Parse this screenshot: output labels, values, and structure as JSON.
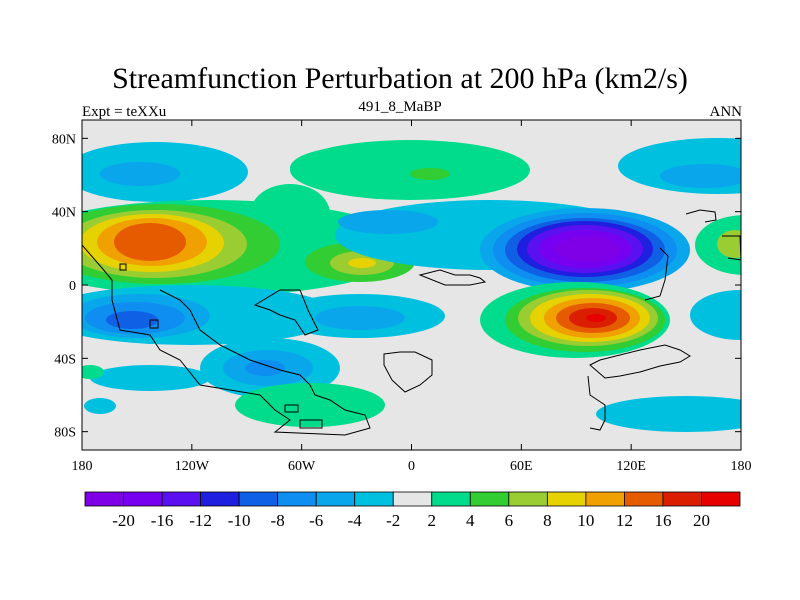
{
  "chart_data": {
    "type": "heatmap",
    "title": "Streamfunction Perturbation at 200 hPa (km2/s)",
    "left_label": "Expt = teXXu",
    "center_label": "491_8_MaBP",
    "right_label": "ANN",
    "x_ticks": [
      {
        "value": -180,
        "label": "180"
      },
      {
        "value": -120,
        "label": "120W"
      },
      {
        "value": -60,
        "label": "60W"
      },
      {
        "value": 0,
        "label": "0"
      },
      {
        "value": 60,
        "label": "60E"
      },
      {
        "value": 120,
        "label": "120E"
      },
      {
        "value": 180,
        "label": "180"
      }
    ],
    "y_ticks": [
      {
        "value": 80,
        "label": "80N"
      },
      {
        "value": 40,
        "label": "40N"
      },
      {
        "value": 0,
        "label": "0"
      },
      {
        "value": -40,
        "label": "40S"
      },
      {
        "value": -80,
        "label": "80S"
      }
    ],
    "xlim": [
      -180,
      180
    ],
    "ylim": [
      -90,
      90
    ],
    "levels": [
      -20,
      -16,
      -12,
      -10,
      -8,
      -6,
      -4,
      -2,
      2,
      4,
      6,
      8,
      10,
      12,
      16,
      20
    ],
    "level_labels": [
      "-20",
      "-16",
      "-12",
      "-10",
      "-8",
      "-6",
      "-4",
      "-2",
      "2",
      "4",
      "6",
      "8",
      "10",
      "12",
      "16",
      "20"
    ],
    "colors": [
      "#7f00e6",
      "#7700f0",
      "#5a10f0",
      "#1f1fe0",
      "#1060e6",
      "#0d8ef0",
      "#0aa6eb",
      "#00c0e0",
      "#e6e6e6",
      "#00dc8c",
      "#32cd32",
      "#9acd32",
      "#e6d200",
      "#f0a000",
      "#e65a00",
      "#dc1e00",
      "#e60000"
    ],
    "features": [
      {
        "lon": -145,
        "lat": 25,
        "value": 16
      },
      {
        "lon": -45,
        "lat": 12,
        "value": 9
      },
      {
        "lon": -95,
        "lat": 55,
        "value": 3
      },
      {
        "lon": 10,
        "lat": 62,
        "value": 3
      },
      {
        "lon": -150,
        "lat": 62,
        "value": -5
      },
      {
        "lon": 140,
        "lat": 63,
        "value": -5
      },
      {
        "lon": 95,
        "lat": 20,
        "value": -22
      },
      {
        "lon": 10,
        "lat": 30,
        "value": -6
      },
      {
        "lon": 175,
        "lat": 25,
        "value": 7
      },
      {
        "lon": -160,
        "lat": -18,
        "value": -10
      },
      {
        "lon": -30,
        "lat": -20,
        "value": -5
      },
      {
        "lon": 100,
        "lat": -17,
        "value": 18
      },
      {
        "lon": -90,
        "lat": -45,
        "value": -9
      },
      {
        "lon": 150,
        "lat": -72,
        "value": -6
      },
      {
        "lon": -45,
        "lat": -62,
        "value": 3
      }
    ]
  }
}
